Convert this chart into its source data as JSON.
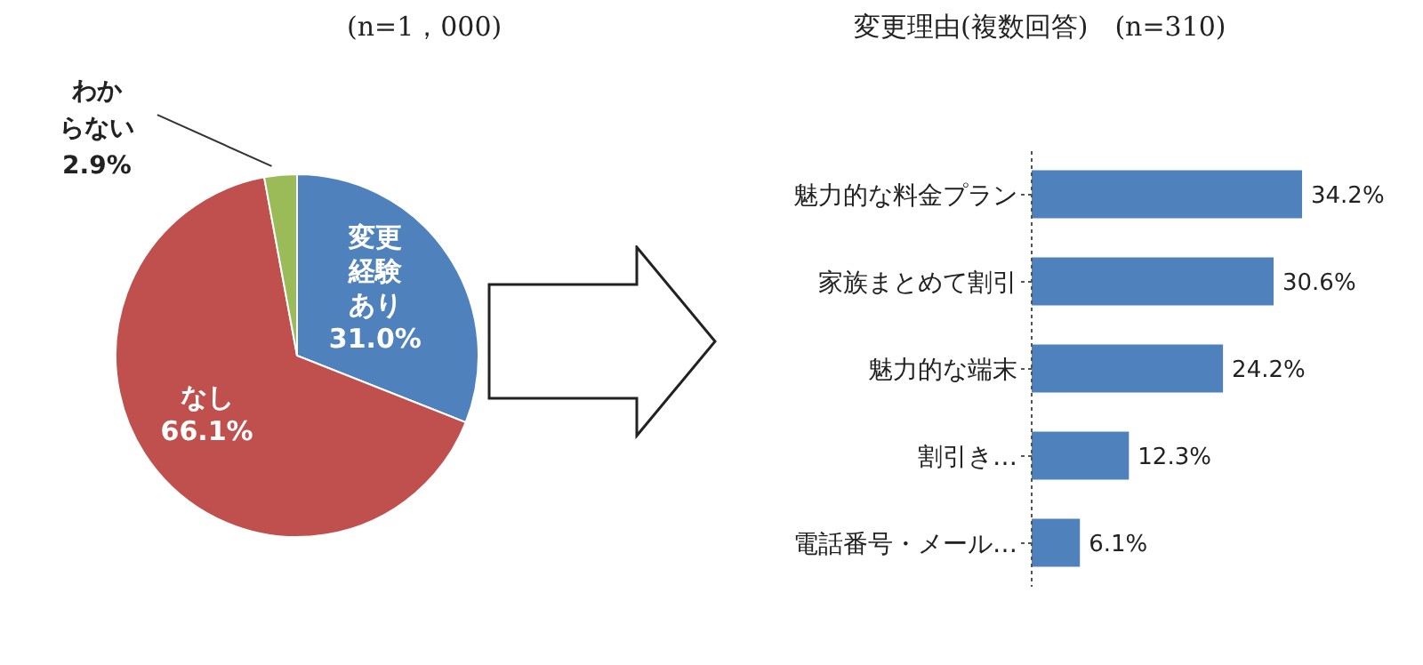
{
  "chart_data": [
    {
      "type": "pie",
      "title": "(n=1，000)",
      "categories": [
        "変更経験あり",
        "なし",
        "わからない"
      ],
      "values": [
        31.0,
        66.1,
        2.9
      ],
      "colors": [
        "#4f81bd",
        "#c0504d",
        "#9bbb59"
      ],
      "value_labels": [
        "31.0%",
        "66.1%",
        "2.9%"
      ],
      "legend": false
    },
    {
      "type": "bar",
      "orientation": "horizontal",
      "title": "変更理由(複数回答)　(n=310)",
      "categories": [
        "魅力的な料金プラン",
        "家族まとめて割引",
        "魅力的な端末",
        "割引き…",
        "電話番号・メール…"
      ],
      "values": [
        34.2,
        30.6,
        24.2,
        12.3,
        6.1
      ],
      "color": "#4f81bd",
      "value_labels": [
        "34.2%",
        "30.6%",
        "24.2%",
        "12.3%",
        "6.1%"
      ],
      "legend": false,
      "grid": false
    }
  ]
}
